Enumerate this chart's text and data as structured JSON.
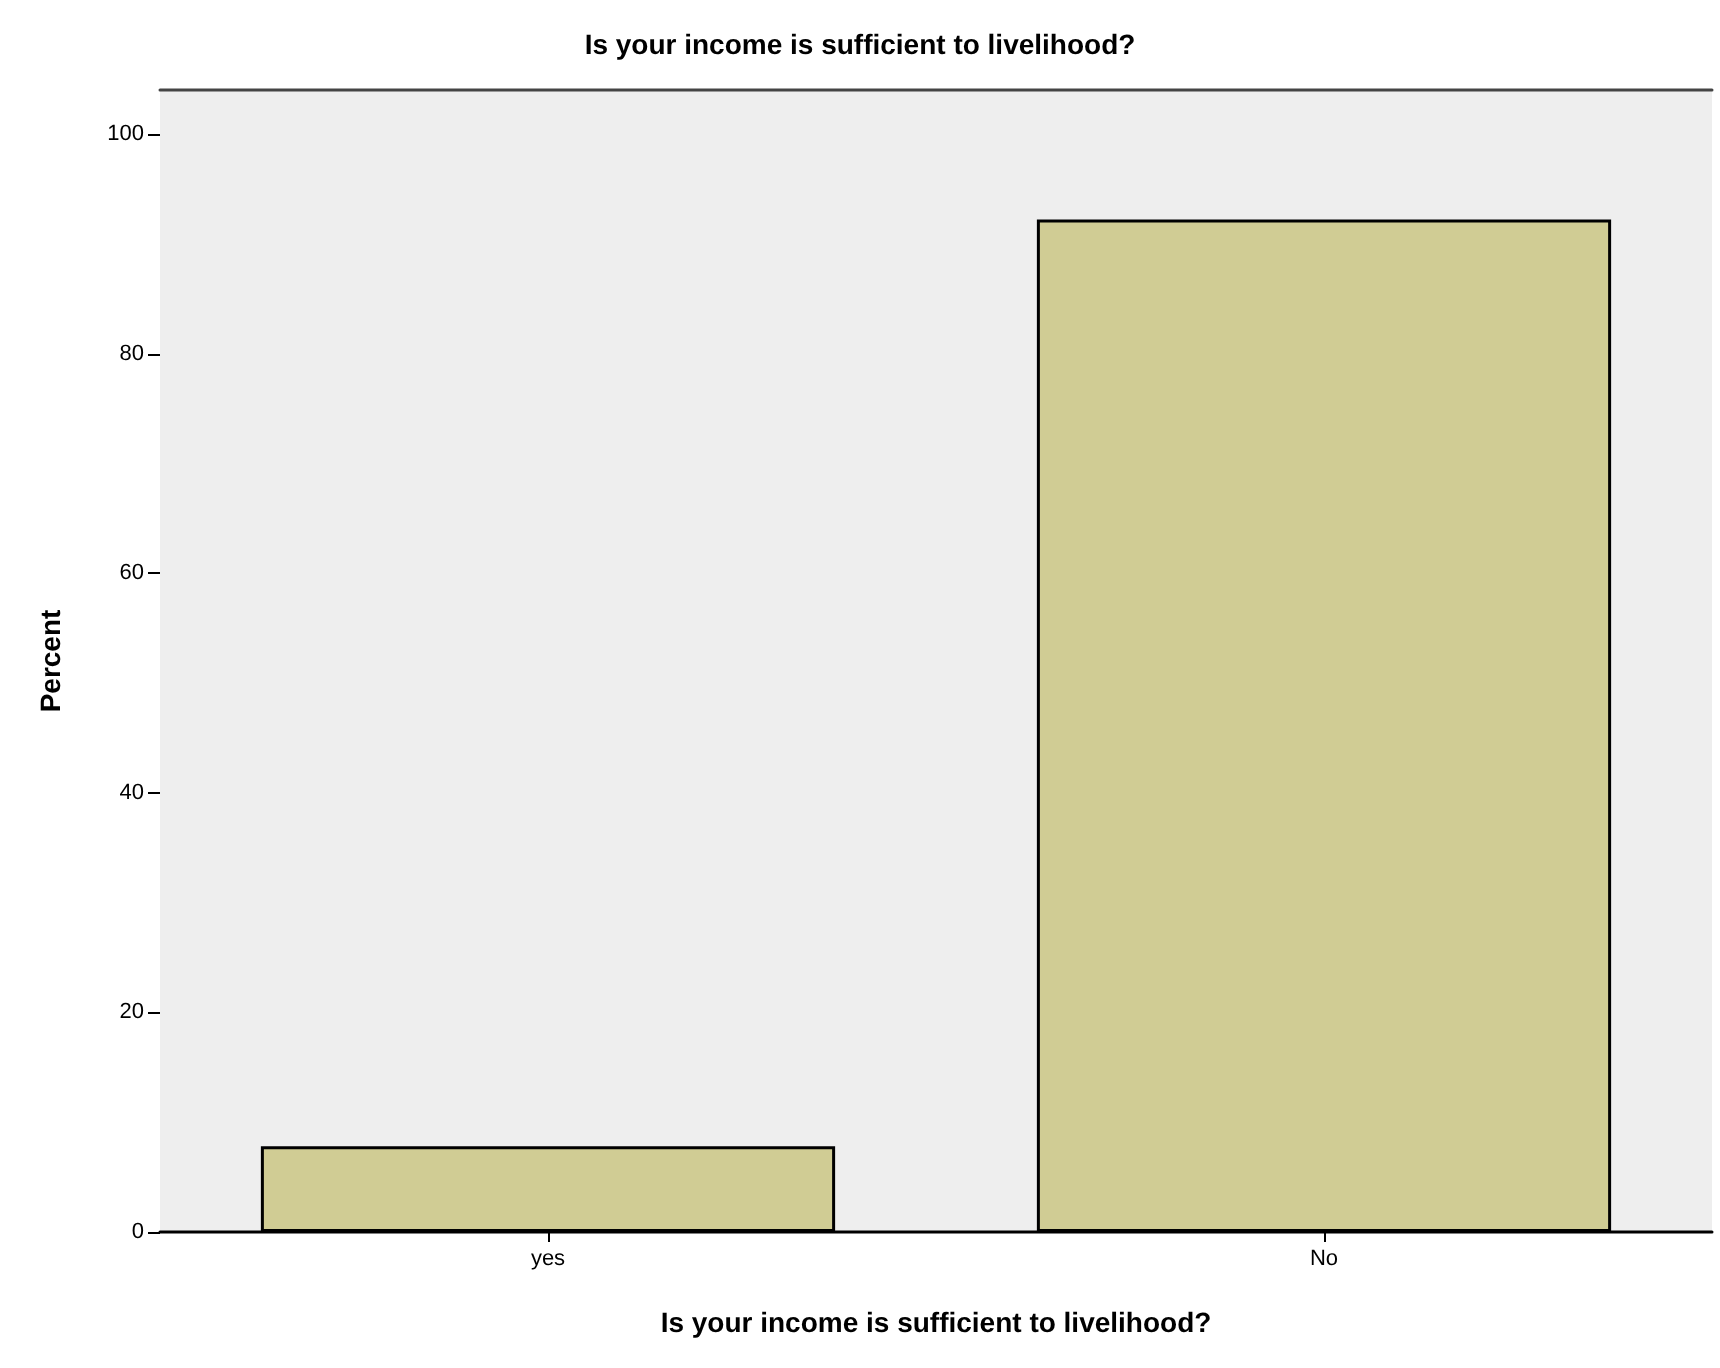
{
  "chart_data": {
    "type": "bar",
    "title": "Is your income is sufficient to livelihood?",
    "xlabel": "Is your income is sufficient to livelihood?",
    "ylabel": "Percent",
    "categories": [
      "yes",
      "No"
    ],
    "values": [
      7.8,
      92.2
    ],
    "color": "#d0cc94",
    "ylim": [
      0,
      104
    ],
    "yticks": [
      0,
      20,
      40,
      60,
      80,
      100
    ],
    "grid": false
  }
}
